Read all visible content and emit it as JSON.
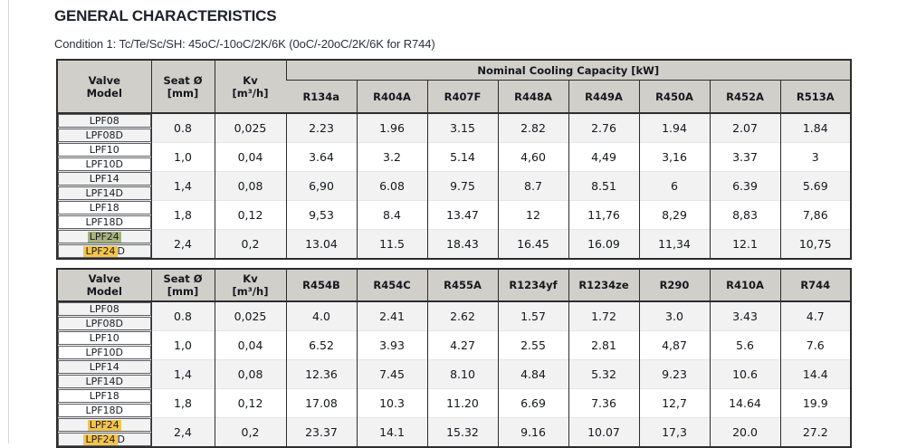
{
  "page": {
    "title": "GENERAL CHARACTERISTICS",
    "condition": "Condition 1: Tc/Te/Sc/SH: 45oC/-10oC/2K/6K (0oC/-20oC/2K/6K for R744)"
  },
  "colors": {
    "header_bg": "#d1cfca",
    "border_dark": "#2d2d2d",
    "stripe": "#f2f2f2",
    "highlight_green": "#a6b37d",
    "highlight_yellow": "#f5c44c",
    "title_color": "#1d212b"
  },
  "tables": [
    {
      "id": "table-1",
      "group_header": "Nominal Cooling Capacity [kW]",
      "fixed_columns": [
        {
          "id": "valve-model",
          "label": "Valve\nModel"
        },
        {
          "id": "seat-diameter",
          "label": "Seat Ø\n[mm]"
        },
        {
          "id": "kv",
          "label": "Kv\n[m³/h]"
        }
      ],
      "refrigerants": [
        "R134a",
        "R404A",
        "R407F",
        "R448A",
        "R449A",
        "R450A",
        "R452A",
        "R513A"
      ],
      "rows": [
        {
          "models": [
            {
              "text": "LPF08"
            },
            {
              "text": "LPF08D"
            }
          ],
          "seat": "0.8",
          "kv": "0,025",
          "values": [
            "2.23",
            "1.96",
            "3.15",
            "2.82",
            "2.76",
            "1.94",
            "2.07",
            "1.84"
          ]
        },
        {
          "models": [
            {
              "text": "LPF10"
            },
            {
              "text": "LPF10D"
            }
          ],
          "seat": "1,0",
          "kv": "0,04",
          "values": [
            "3.64",
            "3.2",
            "5.14",
            "4,60",
            "4,49",
            "3,16",
            "3.37",
            "3"
          ]
        },
        {
          "models": [
            {
              "text": "LPF14"
            },
            {
              "text": "LPF14D"
            }
          ],
          "seat": "1,4",
          "kv": "0,08",
          "values": [
            "6,90",
            "6.08",
            "9.75",
            "8.7",
            "8.51",
            "6",
            "6.39",
            "5.69"
          ]
        },
        {
          "models": [
            {
              "text": "LPF18"
            },
            {
              "text": "LPF18D"
            }
          ],
          "seat": "1,8",
          "kv": "0,12",
          "values": [
            "9,53",
            "8.4",
            "13.47",
            "12",
            "11,76",
            "8,29",
            "8,83",
            "7,86"
          ]
        },
        {
          "models": [
            {
              "mark": "LPF24",
              "mark_color": "green",
              "rest": ""
            },
            {
              "mark": "LPF24",
              "mark_color": "yellow",
              "rest": "D"
            }
          ],
          "seat": "2,4",
          "kv": "0,2",
          "values": [
            "13.04",
            "11.5",
            "18.43",
            "16.45",
            "16.09",
            "11,34",
            "12.1",
            "10,75"
          ]
        }
      ]
    },
    {
      "id": "table-2",
      "group_header": null,
      "fixed_columns": [
        {
          "id": "valve-model",
          "label": "Valve\nModel"
        },
        {
          "id": "seat-diameter",
          "label": "Seat Ø\n[mm]"
        },
        {
          "id": "kv",
          "label": "Kv\n[m³/h]"
        }
      ],
      "refrigerants": [
        "R454B",
        "R454C",
        "R455A",
        "R1234yf",
        "R1234ze",
        "R290",
        "R410A",
        "R744"
      ],
      "rows": [
        {
          "models": [
            {
              "text": "LPF08"
            },
            {
              "text": "LPF08D"
            }
          ],
          "seat": "0.8",
          "kv": "0,025",
          "values": [
            "4.0",
            "2.41",
            "2.62",
            "1.57",
            "1.72",
            "3.0",
            "3.43",
            "4.7"
          ]
        },
        {
          "models": [
            {
              "text": "LPF10"
            },
            {
              "text": "LPF10D"
            }
          ],
          "seat": "1,0",
          "kv": "0,04",
          "values": [
            "6.52",
            "3.93",
            "4.27",
            "2.55",
            "2.81",
            "4,87",
            "5.6",
            "7.6"
          ]
        },
        {
          "models": [
            {
              "text": "LPF14"
            },
            {
              "text": "LPF14D"
            }
          ],
          "seat": "1,4",
          "kv": "0,08",
          "values": [
            "12.36",
            "7.45",
            "8.10",
            "4.84",
            "5.32",
            "9.23",
            "10.6",
            "14.4"
          ]
        },
        {
          "models": [
            {
              "text": "LPF18"
            },
            {
              "text": "LPF18D"
            }
          ],
          "seat": "1,8",
          "kv": "0,12",
          "values": [
            "17.08",
            "10.3",
            "11.20",
            "6.69",
            "7.36",
            "12,7",
            "14.64",
            "19.9"
          ]
        },
        {
          "models": [
            {
              "mark": "LPF24",
              "mark_color": "yellow",
              "rest": ""
            },
            {
              "mark": "LPF24",
              "mark_color": "yellow",
              "rest": "D"
            }
          ],
          "seat": "2,4",
          "kv": "0,2",
          "values": [
            "23.37",
            "14.1",
            "15.32",
            "9.16",
            "10.07",
            "17,3",
            "20.0",
            "27.2"
          ]
        }
      ]
    }
  ]
}
